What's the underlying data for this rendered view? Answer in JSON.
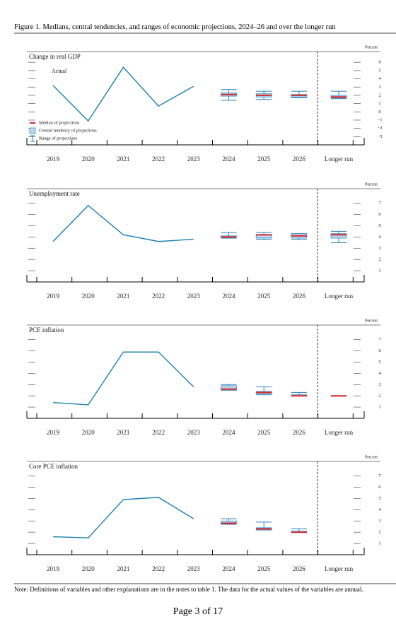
{
  "title": "Figure 1. Medians, central tendencies, and ranges of economic projections, 2024–26 and over the longer run",
  "note": "Note: Definitions of variables and other explanations are in the notes to table 1. The data for the actual values of the variables are annual.",
  "page": "Page 3 of 17",
  "chart_data": [
    {
      "type": "line",
      "title": "Change in real GDP",
      "y_label": "Percent",
      "annotation": "Actual",
      "legend": [
        "Median of projections",
        "Central tendency of projections",
        "Range of projections"
      ],
      "categories": [
        "2019",
        "2020",
        "2021",
        "2022",
        "2023",
        "2024",
        "2025",
        "2026",
        "Longer run"
      ],
      "series": [
        {
          "name": "Actual",
          "color": "#1a7fb0",
          "values": [
            3.2,
            -1.1,
            5.4,
            0.7,
            3.1,
            null,
            null,
            null,
            null
          ]
        }
      ],
      "median": [
        null,
        null,
        null,
        null,
        null,
        2.1,
        2.0,
        2.0,
        1.8
      ],
      "ct_low": [
        null,
        null,
        null,
        null,
        null,
        1.9,
        1.8,
        1.8,
        1.7
      ],
      "ct_high": [
        null,
        null,
        null,
        null,
        null,
        2.3,
        2.2,
        2.1,
        2.0
      ],
      "range_low": [
        null,
        null,
        null,
        null,
        null,
        1.4,
        1.5,
        1.7,
        1.6
      ],
      "range_high": [
        null,
        null,
        null,
        null,
        null,
        2.7,
        2.5,
        2.5,
        2.5
      ],
      "ylim": [
        -4,
        7.3
      ],
      "yticks": [
        6,
        5,
        4,
        3,
        2,
        1,
        0,
        {
          "value": -1,
          "label": "−1"
        },
        {
          "value": -2,
          "label": "−2"
        },
        {
          "value": -3,
          "label": "−3"
        }
      ]
    },
    {
      "type": "line",
      "title": "Unemployment rate",
      "y_label": "Percent",
      "categories": [
        "2019",
        "2020",
        "2021",
        "2022",
        "2023",
        "2024",
        "2025",
        "2026",
        "Longer run"
      ],
      "series": [
        {
          "name": "Actual",
          "color": "#1a7fb0",
          "values": [
            3.6,
            6.8,
            4.2,
            3.6,
            3.8,
            null,
            null,
            null,
            null
          ]
        }
      ],
      "median": [
        null,
        null,
        null,
        null,
        null,
        4.0,
        4.2,
        4.1,
        4.2
      ],
      "ct_low": [
        null,
        null,
        null,
        null,
        null,
        4.0,
        3.9,
        3.9,
        3.9
      ],
      "ct_high": [
        null,
        null,
        null,
        null,
        null,
        4.1,
        4.2,
        4.3,
        4.3
      ],
      "range_low": [
        null,
        null,
        null,
        null,
        null,
        3.9,
        3.8,
        3.8,
        3.5
      ],
      "range_high": [
        null,
        null,
        null,
        null,
        null,
        4.4,
        4.4,
        4.3,
        4.5
      ],
      "ylim": [
        0,
        8.3
      ],
      "yticks": [
        7,
        6,
        5,
        4,
        3,
        2,
        1
      ]
    },
    {
      "type": "line",
      "title": "PCE inflation",
      "y_label": "Percent",
      "categories": [
        "2019",
        "2020",
        "2021",
        "2022",
        "2023",
        "2024",
        "2025",
        "2026",
        "Longer run"
      ],
      "series": [
        {
          "name": "Actual",
          "color": "#1a7fb0",
          "values": [
            1.4,
            1.2,
            5.9,
            5.9,
            2.8,
            null,
            null,
            null,
            null
          ]
        }
      ],
      "median": [
        null,
        null,
        null,
        null,
        null,
        2.6,
        2.3,
        2.0,
        2.0
      ],
      "ct_low": [
        null,
        null,
        null,
        null,
        null,
        2.5,
        2.2,
        2.0,
        2.0
      ],
      "ct_high": [
        null,
        null,
        null,
        null,
        null,
        2.9,
        2.4,
        2.1,
        2.0
      ],
      "range_low": [
        null,
        null,
        null,
        null,
        null,
        2.5,
        2.1,
        2.0,
        2.0
      ],
      "range_high": [
        null,
        null,
        null,
        null,
        null,
        3.0,
        2.8,
        2.3,
        2.0
      ],
      "ylim": [
        0,
        8.3
      ],
      "yticks": [
        7,
        6,
        5,
        4,
        3,
        2,
        1
      ]
    },
    {
      "type": "line",
      "title": "Core PCE inflation",
      "y_label": "Percent",
      "categories": [
        "2019",
        "2020",
        "2021",
        "2022",
        "2023",
        "2024",
        "2025",
        "2026",
        "Longer run"
      ],
      "series": [
        {
          "name": "Actual",
          "color": "#1a7fb0",
          "values": [
            1.6,
            1.5,
            4.9,
            5.1,
            3.2,
            null,
            null,
            null,
            null
          ]
        }
      ],
      "median": [
        null,
        null,
        null,
        null,
        null,
        2.8,
        2.3,
        2.0,
        null
      ],
      "ct_low": [
        null,
        null,
        null,
        null,
        null,
        2.8,
        2.3,
        2.0,
        null
      ],
      "ct_high": [
        null,
        null,
        null,
        null,
        null,
        3.0,
        2.4,
        2.1,
        null
      ],
      "range_low": [
        null,
        null,
        null,
        null,
        null,
        2.7,
        2.2,
        2.0,
        null
      ],
      "range_high": [
        null,
        null,
        null,
        null,
        null,
        3.2,
        2.9,
        2.3,
        null
      ],
      "ylim": [
        0,
        8.3
      ],
      "yticks": [
        7,
        6,
        5,
        4,
        3,
        2,
        1
      ]
    }
  ]
}
